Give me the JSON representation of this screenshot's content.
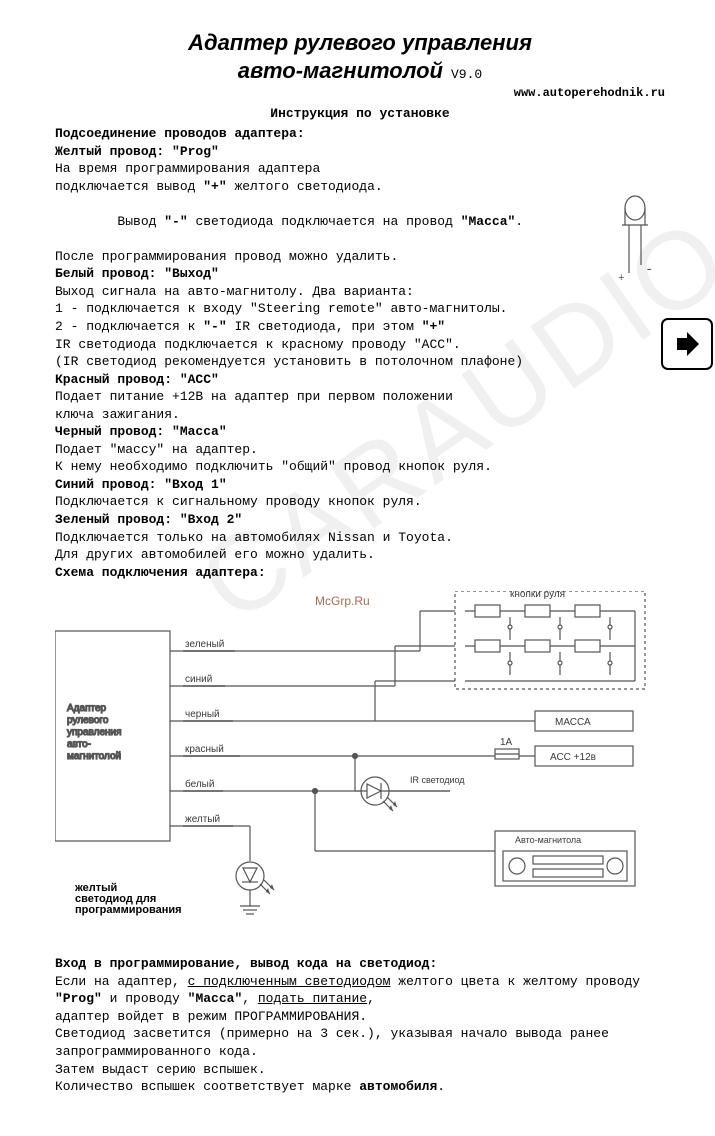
{
  "title_line1": "Адаптер рулевого управления",
  "title_line2": "авто-магнитолой",
  "version": "V9.0",
  "url": "www.autoperehodnik.ru",
  "subtitle": "Инструкция по установке",
  "sec_connect_heading": "Подсоединение проводов адаптера:",
  "yellow_h": "Желтый провод: \"Prog\"",
  "yellow_l1": "На время программирования адаптера",
  "yellow_l2a": "подключается вывод ",
  "yellow_l2b": "\"+\"",
  "yellow_l2c": " желтого светодиода.",
  "yellow_l3a": "  Вывод ",
  "yellow_l3b": "\"-\"",
  "yellow_l3c": " светодиода подключается на провод ",
  "yellow_l3d": "\"Масса\"",
  "yellow_l3e": ".",
  "yellow_l4": "После программирования провод можно удалить.",
  "white_h": "Белый провод: \"Выход\"",
  "white_l1": "Выход сигнала на авто-магнитолу. Два варианта:",
  "white_l2": "1 - подключается к входу \"Steering remote\" авто-магнитолы.",
  "white_l3a": "2 - подключается к ",
  "white_l3b": "\"-\"",
  "white_l3c": " IR светодиода, при этом ",
  "white_l3d": "\"+\"",
  "white_l4": " IR светодиода подключается к красному проводу \"АСС\".",
  "white_l5": "(IR светодиод рекомендуется установить в потолочном плафоне)",
  "red_h": "Красный провод: \"АСС\"",
  "red_l1": "Подает питание +12В на адаптер при первом положении",
  "red_l2": "ключа зажигания.",
  "black_h": "Черный провод: \"Масса\"",
  "black_l1": "Подает \"массу\" на адаптер.",
  "black_l2": "К нему необходимо подключить \"общий\" провод кнопок руля.",
  "blue_h": "Синий провод: \"Вход 1\"",
  "blue_l1": "Подключается к сигнальному проводу кнопок руля.",
  "green_h": "Зеленый провод: \"Вход 2\"",
  "green_l1": "Подключается только на автомобилях Nissan и Toyota.",
  "green_l2": "Для других автомобилей его можно удалить.",
  "schema_heading": "Схема подключения адаптера:",
  "diagram": {
    "adapter_label": "Адаптер\nрулевого\nуправления\nавто-\nмагнитолой",
    "wire_green": "зеленый",
    "wire_blue": "синий",
    "wire_black": "черный",
    "wire_red": "красный",
    "wire_white": "белый",
    "wire_yellow": "желтый",
    "buttons_label": "кнопки руля",
    "massa_label": "МАССА",
    "acc_label": "АСС +12в",
    "fuse": "1A",
    "ir_led_label": "IR светодиод",
    "radio_label": "Авто-магнитола",
    "yellow_led_label": "желтый\nсветодиод для\nпрограммирования",
    "mark": "McGrp.Ru",
    "colors": {
      "line": "#555",
      "text": "#3a3a3a",
      "mark": "#aa6a55"
    }
  },
  "prog_heading": "Вход в программирование, вывод кода на светодиод:",
  "prog_l1a": "Если на адаптер, ",
  "prog_l1b": "с подключенным светодиодом",
  "prog_l1c": " желтого цвета к желтому проводу",
  "prog_l2a": "\"Prog\"",
  "prog_l2b": " и проводу ",
  "prog_l2c": "\"Масса\"",
  "prog_l2d": ", ",
  "prog_l2e": "подать питание",
  "prog_l2f": ",",
  "prog_l3": "адаптер войдет в режим ПРОГРАММИРОВАНИЯ.",
  "prog_l4": "Светодиод засветится  (примерно на 3 сек.), указывая начало вывода ранее запрограммированного кода.",
  "prog_l5": "Затем выдаст серию вспышек.",
  "prog_l6a": "Количество вспышек соответствует марке ",
  "prog_l6b": "автомобиля",
  "prog_l6c": "."
}
